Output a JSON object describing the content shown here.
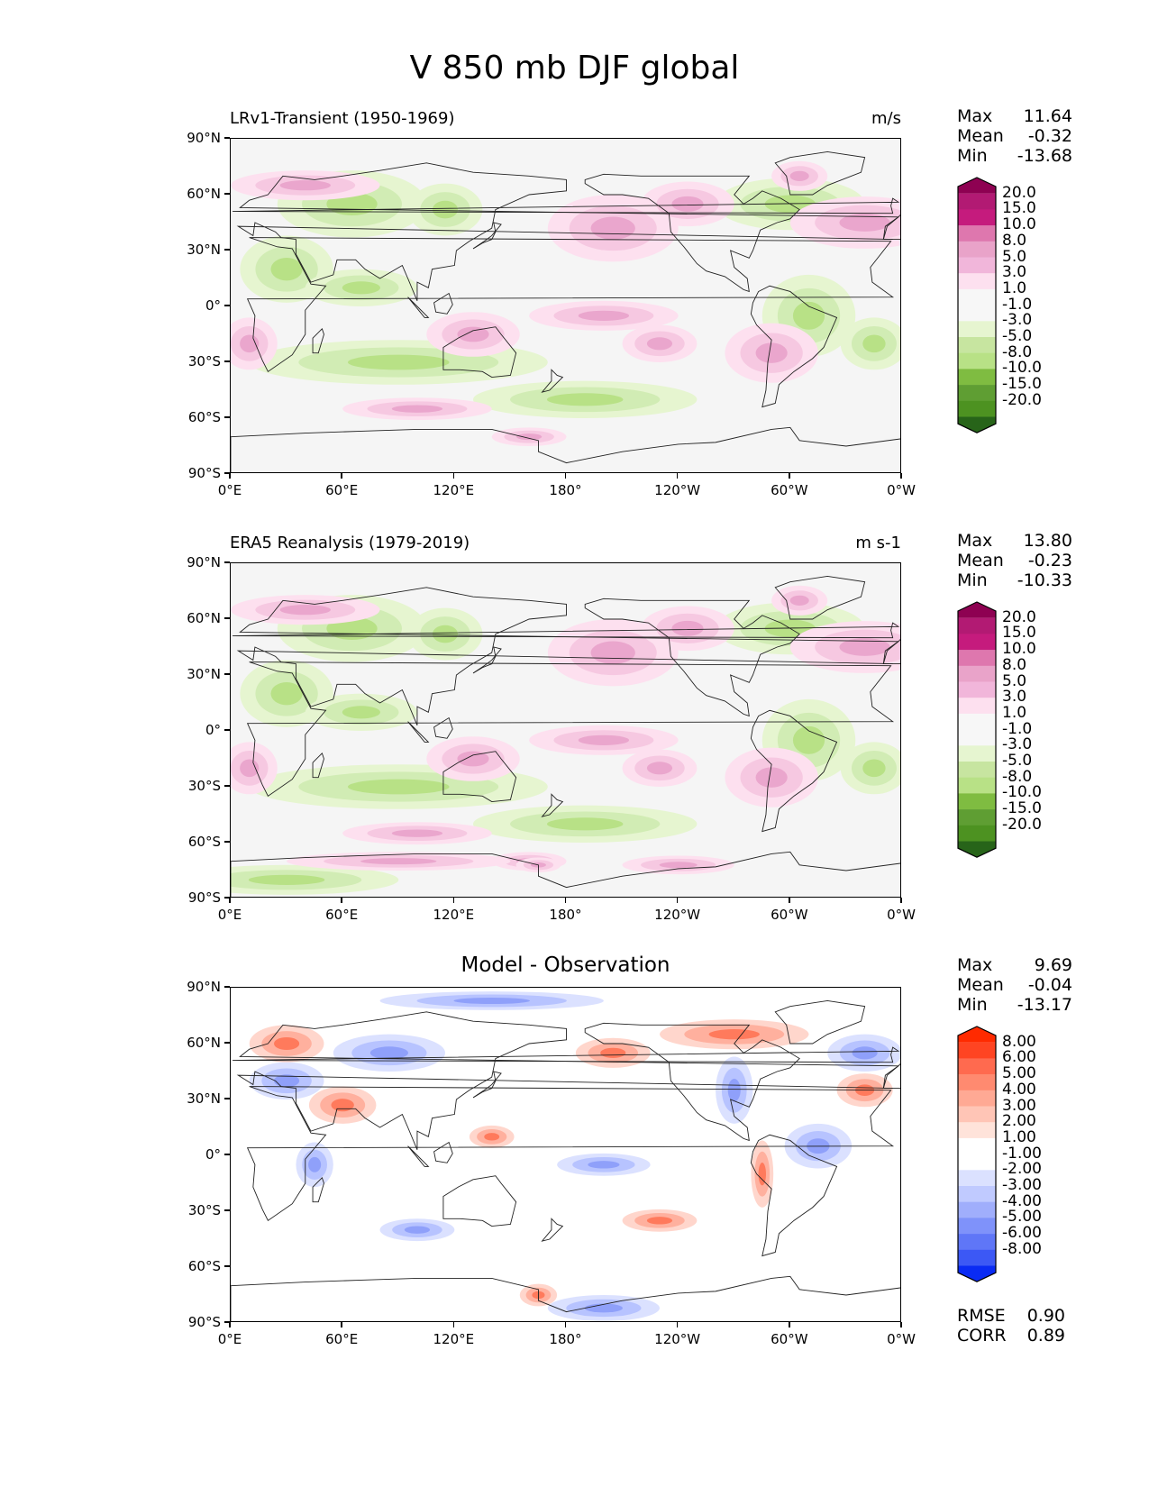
{
  "title": "V 850 mb DJF global",
  "panels": [
    {
      "left_title": "LRv1-Transient (1950-1969)",
      "right_title": "m/s",
      "center_title": "",
      "stats": {
        "max_label": "Max",
        "max": "11.64",
        "mean_label": "Mean",
        "mean": "-0.32",
        "min_label": "Min",
        "min": "-13.68"
      },
      "colorbar": {
        "labels": [
          "20.0",
          "15.0",
          "10.0",
          "8.0",
          "5.0",
          "3.0",
          "1.0",
          "-1.0",
          "-3.0",
          "-5.0",
          "-8.0",
          "-10.0",
          "-15.0",
          "-20.0"
        ],
        "colors": [
          "#8e0152",
          "#b21a73",
          "#c51b7d",
          "#de77ae",
          "#e9a3c9",
          "#f1b6da",
          "#fde0ef",
          "#f7f7f7",
          "#f7f7f7",
          "#e6f5d0",
          "#c7e5a0",
          "#b8e186",
          "#7fbc41",
          "#5f9e33",
          "#4d9221",
          "#276419"
        ]
      }
    },
    {
      "left_title": "ERA5 Reanalysis (1979-2019)",
      "right_title": "m s-1",
      "center_title": "",
      "stats": {
        "max_label": "Max",
        "max": "13.80",
        "mean_label": "Mean",
        "mean": "-0.23",
        "min_label": "Min",
        "min": "-10.33"
      },
      "colorbar": {
        "labels": [
          "20.0",
          "15.0",
          "10.0",
          "8.0",
          "5.0",
          "3.0",
          "1.0",
          "-1.0",
          "-3.0",
          "-5.0",
          "-8.0",
          "-10.0",
          "-15.0",
          "-20.0"
        ],
        "colors": [
          "#8e0152",
          "#b21a73",
          "#c51b7d",
          "#de77ae",
          "#e9a3c9",
          "#f1b6da",
          "#fde0ef",
          "#f7f7f7",
          "#f7f7f7",
          "#e6f5d0",
          "#c7e5a0",
          "#b8e186",
          "#7fbc41",
          "#5f9e33",
          "#4d9221",
          "#276419"
        ]
      }
    },
    {
      "left_title": "",
      "right_title": "",
      "center_title": "Model - Observation",
      "stats": {
        "max_label": "Max",
        "max": "9.69",
        "mean_label": "Mean",
        "mean": "-0.04",
        "min_label": "Min",
        "min": "-13.17"
      },
      "colorbar": {
        "labels": [
          "8.00",
          "6.00",
          "5.00",
          "4.00",
          "3.00",
          "2.00",
          "1.00",
          "-1.00",
          "-2.00",
          "-3.00",
          "-4.00",
          "-5.00",
          "-6.00",
          "-8.00"
        ],
        "colors": [
          "#ff2a00",
          "#ff4422",
          "#ff6a4f",
          "#ff8a70",
          "#ffa994",
          "#ffc5b6",
          "#ffe3da",
          "#ffffff",
          "#ffffff",
          "#dbe1ff",
          "#c0caff",
          "#a0aefc",
          "#7f92fa",
          "#5f76f7",
          "#3c58f5",
          "#0a2bf4"
        ]
      },
      "metrics": {
        "rmse_label": "RMSE",
        "rmse": "0.90",
        "corr_label": "CORR",
        "corr": "0.89"
      }
    }
  ],
  "chart_data": {
    "type": "heatmap",
    "title": "V 850 mb DJF global",
    "xlabel": "",
    "ylabel": "",
    "x_ticks": [
      "0°E",
      "60°E",
      "120°E",
      "180°",
      "120°W",
      "60°W",
      "0°W"
    ],
    "y_ticks": [
      "90°N",
      "60°N",
      "30°N",
      "0°",
      "30°S",
      "60°S",
      "90°S"
    ],
    "xlim": [
      0,
      360
    ],
    "ylim": [
      -90,
      90
    ]
  }
}
